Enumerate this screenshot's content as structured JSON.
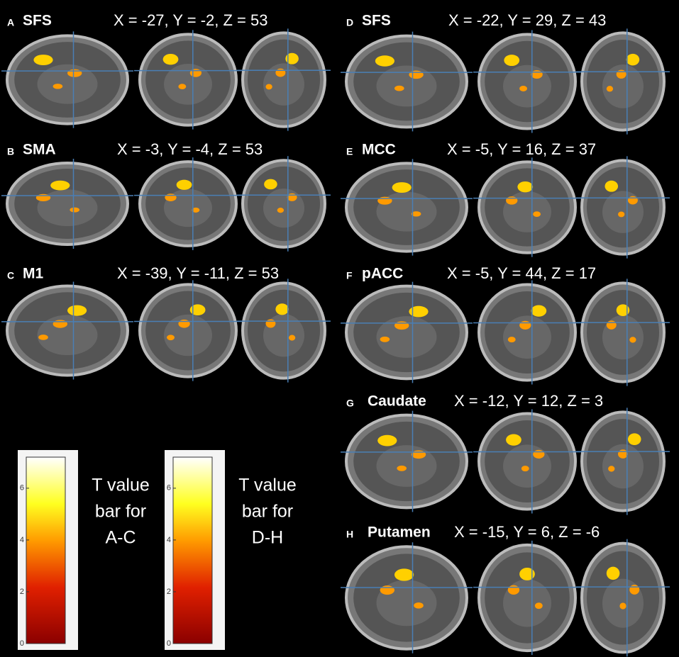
{
  "panels": [
    {
      "letter": "A",
      "region": "SFS",
      "coords": "X = -27, Y = -2, Z = 53"
    },
    {
      "letter": "B",
      "region": "SMA",
      "coords": "X = -3, Y = -4, Z = 53"
    },
    {
      "letter": "C",
      "region": "M1",
      "coords": "X = -39, Y = -11, Z = 53"
    },
    {
      "letter": "D",
      "region": "SFS",
      "coords": "X = -22, Y = 29, Z = 43"
    },
    {
      "letter": "E",
      "region": "MCC",
      "coords": "X = -5, Y = 16, Z = 37"
    },
    {
      "letter": "F",
      "region": "pACC",
      "coords": "X = -5, Y = 44, Z = 17"
    },
    {
      "letter": "G",
      "region": "Caudate",
      "coords": "X = -12, Y = 12, Z = 3"
    },
    {
      "letter": "H",
      "region": "Putamen",
      "coords": "X = -15, Y = 6, Z = -6"
    }
  ],
  "colorbars": [
    {
      "lim": [
        0,
        7.2
      ],
      "ticks": [
        0,
        2,
        4,
        6
      ],
      "label_lines": [
        "T value",
        "bar for",
        "A-C"
      ]
    },
    {
      "lim": [
        0,
        7.2
      ],
      "ticks": [
        0,
        2,
        4,
        6
      ],
      "label_lines": [
        "T value",
        "bar for",
        "D-H"
      ]
    }
  ]
}
